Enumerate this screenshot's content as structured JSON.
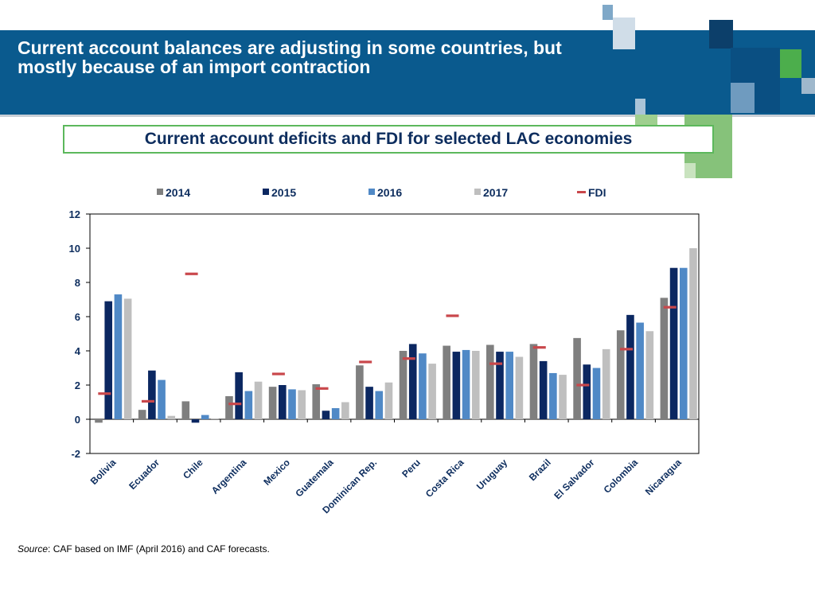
{
  "header": {
    "title_line1": "Current account balances are adjusting in some countries, but",
    "title_line2": "mostly because of an import contraction",
    "banner_color": "#0a5a8e"
  },
  "subtitle": "Current account deficits and FDI for selected LAC economies",
  "source": {
    "label": "Source",
    "text": ": CAF based on IMF (April 2016) and CAF forecasts."
  },
  "chart_data": {
    "type": "bar",
    "title": "",
    "xlabel": "",
    "ylabel": "",
    "ylim": [
      -2,
      12
    ],
    "yticks": [
      -2,
      0,
      2,
      4,
      6,
      8,
      10,
      12
    ],
    "grid": false,
    "legend_position": "top",
    "categories": [
      "Bolivia",
      "Ecuador",
      "Chile",
      "Argentina",
      "Mexico",
      "Guatemala",
      "Dominican Rep.",
      "Peru",
      "Costa Rica",
      "Uruguay",
      "Brazil",
      "El Salvador",
      "Colombia",
      "Nicaragua"
    ],
    "series": [
      {
        "name": "2014",
        "color": "#7f7f7f",
        "values": [
          -0.2,
          0.55,
          1.05,
          1.35,
          1.9,
          2.05,
          3.15,
          4.0,
          4.3,
          4.35,
          4.4,
          4.75,
          5.2,
          7.1
        ]
      },
      {
        "name": "2015",
        "color": "#0b2761",
        "values": [
          6.9,
          2.85,
          -0.2,
          2.75,
          2.0,
          0.5,
          1.9,
          4.4,
          3.95,
          3.95,
          3.4,
          3.2,
          6.1,
          8.85
        ]
      },
      {
        "name": "2016",
        "color": "#5089c6",
        "values": [
          7.3,
          2.3,
          0.25,
          1.65,
          1.75,
          0.65,
          1.65,
          3.85,
          4.05,
          3.95,
          2.7,
          3.0,
          5.65,
          8.85
        ]
      },
      {
        "name": "2017",
        "color": "#bfbfbf",
        "values": [
          7.05,
          0.2,
          0.05,
          2.2,
          1.7,
          1.0,
          2.15,
          3.25,
          4.0,
          3.65,
          2.6,
          4.1,
          5.15,
          10.0
        ]
      }
    ],
    "markers": {
      "name": "FDI",
      "color": "#c9474b",
      "values": [
        1.5,
        1.05,
        8.5,
        0.9,
        2.65,
        1.8,
        3.35,
        3.55,
        6.05,
        3.25,
        4.2,
        2.0,
        4.1,
        6.55
      ]
    }
  }
}
